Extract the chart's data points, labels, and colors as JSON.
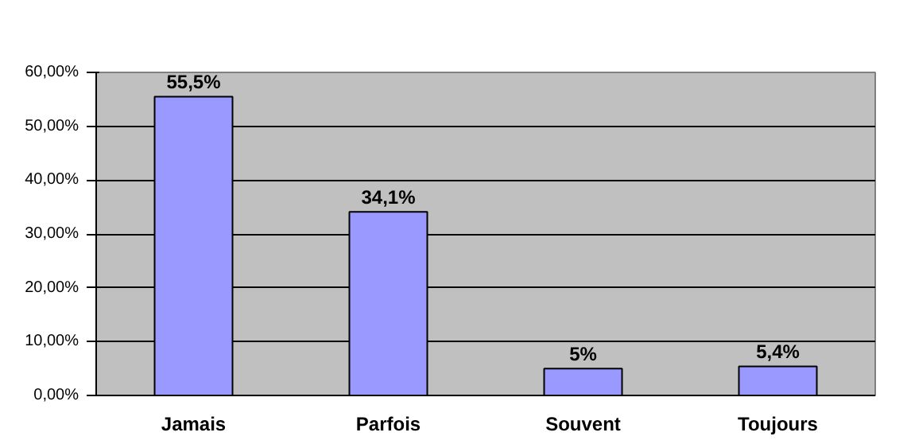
{
  "chart_data": {
    "type": "bar",
    "categories": [
      "Jamais",
      "Parfois",
      "Souvent",
      "Toujours"
    ],
    "values": [
      55.5,
      34.1,
      5,
      5.4
    ],
    "value_labels": [
      "55,5%",
      "34,1%",
      "5%",
      "5,4%"
    ],
    "color": "#9999ff",
    "ylim": [
      0,
      60
    ],
    "yticks": [
      {
        "value": 0,
        "label": "0,00%"
      },
      {
        "value": 10,
        "label": "10,00%"
      },
      {
        "value": 20,
        "label": "20,00%"
      },
      {
        "value": 30,
        "label": "30,00%"
      },
      {
        "value": 40,
        "label": "40,00%"
      },
      {
        "value": 50,
        "label": "50,00%"
      },
      {
        "value": 60,
        "label": "60,00%"
      }
    ],
    "grid": "y"
  }
}
